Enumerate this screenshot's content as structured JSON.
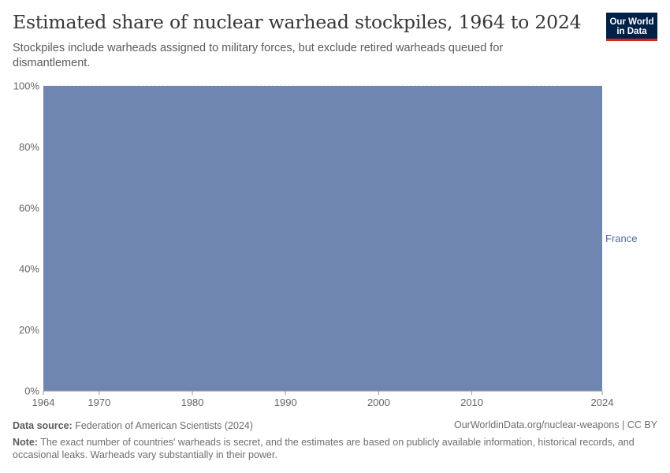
{
  "header": {
    "title": "Estimated share of nuclear warhead stockpiles, 1964 to 2024",
    "subtitle": "Stockpiles include warheads assigned to military forces, but exclude retired warheads queued for dismantlement.",
    "logo_line1": "Our World",
    "logo_line2": "in Data"
  },
  "footer": {
    "source_label": "Data source:",
    "source_text": "Federation of American Scientists (2024)",
    "url_text": "OurWorldinData.org/nuclear-weapons | CC BY",
    "note_label": "Note:",
    "note_text": "The exact number of countries' warheads is secret, and the estimates are based on publicly available information, historical records, and occasional leaks. Warheads vary substantially in their power."
  },
  "colors": {
    "france": "#6f87b0",
    "gridline": "#dddddd",
    "axis": "#999999",
    "label": "#666666"
  },
  "chart_data": {
    "type": "area",
    "stacked": true,
    "normalized": true,
    "title": "Estimated share of nuclear warhead stockpiles, 1964 to 2024",
    "xlabel": "",
    "ylabel": "",
    "xlim": [
      1964,
      2024
    ],
    "ylim": [
      0,
      100
    ],
    "x_ticks": [
      1964,
      1970,
      1980,
      1990,
      2000,
      2010,
      2024
    ],
    "y_ticks": [
      0,
      20,
      40,
      60,
      80,
      100
    ],
    "y_tick_labels": [
      "0%",
      "20%",
      "40%",
      "60%",
      "80%",
      "100%"
    ],
    "grid": true,
    "series": [
      {
        "name": "France",
        "x": [
          1964,
          2024
        ],
        "values": [
          100,
          100
        ]
      }
    ]
  }
}
